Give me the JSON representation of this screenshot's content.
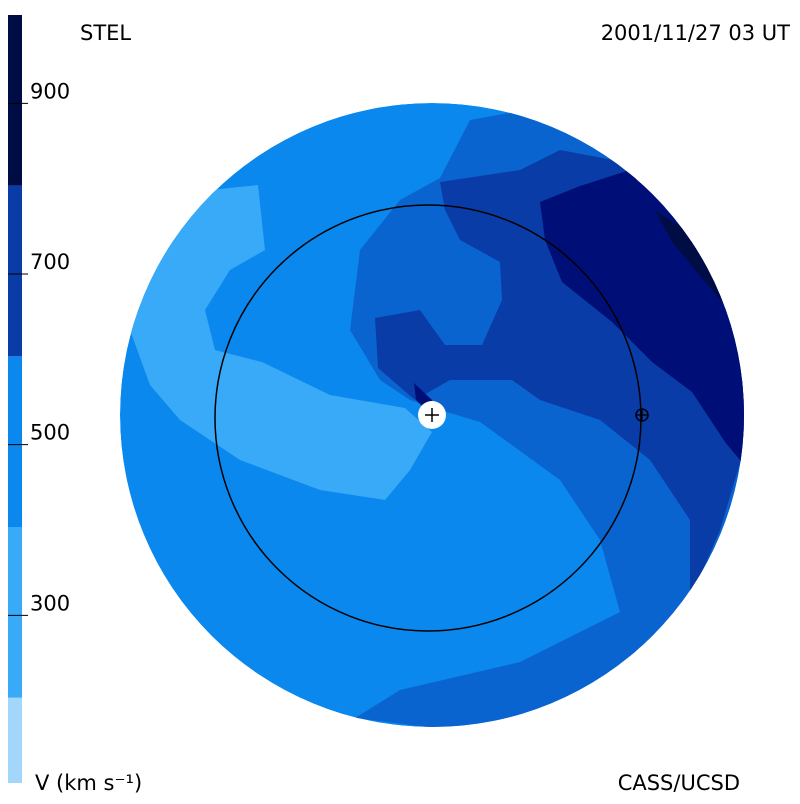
{
  "chart_data": {
    "type": "velocity-map",
    "title": "STEL",
    "subtitle": "2001/11/27 03 UT",
    "colorbar_label": "V (km s⁻¹)",
    "credit": "CASS/UCSD",
    "clim": [
      100,
      1000
    ],
    "cticks": [
      300,
      500,
      700,
      900
    ],
    "bands": [
      {
        "from": 100,
        "to": 200,
        "color": "#a2d6fa"
      },
      {
        "from": 200,
        "to": 400,
        "color": "#38aaf7"
      },
      {
        "from": 400,
        "to": 600,
        "color": "#0a88ee"
      },
      {
        "from": 600,
        "to": 800,
        "color": "#0a3ca8"
      },
      {
        "from": 800,
        "to": 1000,
        "color": "#000c44"
      }
    ]
  }
}
